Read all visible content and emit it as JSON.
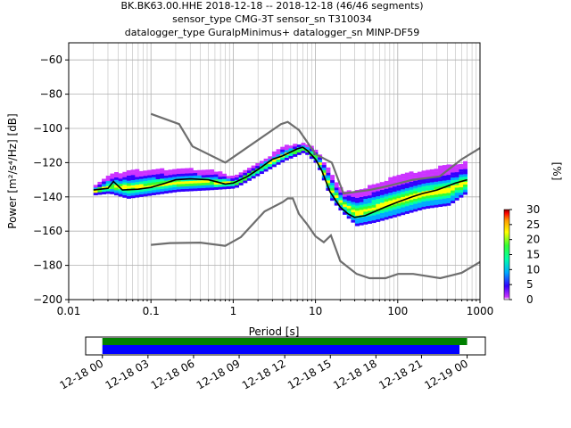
{
  "chart_data": [
    {
      "type": "heatmap",
      "title_lines": [
        "BK.BK63.00.HHE   2018-12-18 -- 2018-12-18  (46/46 segments)",
        "sensor_type CMG-3T sensor_sn T310034",
        "datalogger_type GuralpMinimus+ datalogger_sn MINP-DF59"
      ],
      "xlabel": "Period [s]",
      "ylabel": "Power [m²/s⁴/Hz] [dB]",
      "x_scale": "log",
      "xlim": [
        0.01,
        1000
      ],
      "ylim": [
        -200,
        -50
      ],
      "x_ticks": [
        0.01,
        0.1,
        1,
        10,
        100,
        1000
      ],
      "x_tick_labels": [
        "0.01",
        "0.1",
        "1",
        "10",
        "100",
        "1000"
      ],
      "y_ticks": [
        -200,
        -180,
        -160,
        -140,
        -120,
        -100,
        -80,
        -60
      ],
      "y_tick_labels": [
        "−200",
        "−180",
        "−160",
        "−140",
        "−120",
        "−100",
        "−80",
        "−60"
      ],
      "grid": true,
      "colorbar": {
        "label": "[%]",
        "range": [
          0,
          30
        ],
        "ticks": [
          "0",
          "5",
          "10",
          "15",
          "20",
          "25",
          "30"
        ],
        "colormap": [
          "#ffffff",
          "#cc33ff",
          "#3300ff",
          "#00aaff",
          "#00ffaa",
          "#33ff33",
          "#ffff00",
          "#ff9900",
          "#ff0000",
          "#880000"
        ]
      },
      "series": [
        {
          "name": "",
          "color": "#6e6e6e",
          "points": [
            [
              0.1,
              -91.5
            ],
            [
              0.22,
              -97.5
            ],
            [
              0.32,
              -110.5
            ],
            [
              0.8,
              -120
            ],
            [
              3.8,
              -97.5
            ],
            [
              4.6,
              -96.2
            ],
            [
              6.3,
              -101
            ],
            [
              10,
              -115
            ],
            [
              15.8,
              -120
            ],
            [
              21.9,
              -138
            ],
            [
              31.6,
              -137
            ],
            [
              45.4,
              -136
            ],
            [
              70.8,
              -134
            ],
            [
              153,
              -130
            ],
            [
              324,
              -128
            ],
            [
              600,
              -118
            ],
            [
              1000,
              -111.5
            ]
          ]
        },
        {
          "name": "",
          "color": "#6e6e6e",
          "points": [
            [
              0.1,
              -168
            ],
            [
              0.17,
              -167
            ],
            [
              0.4,
              -166.7
            ],
            [
              0.8,
              -168.6
            ],
            [
              1.24,
              -163.5
            ],
            [
              2.4,
              -148.5
            ],
            [
              4,
              -143
            ],
            [
              4.6,
              -140.9
            ],
            [
              5.3,
              -140.9
            ],
            [
              6.3,
              -150
            ],
            [
              7.9,
              -156
            ],
            [
              10,
              -163
            ],
            [
              12.6,
              -166.5
            ],
            [
              15.4,
              -162.5
            ],
            [
              20,
              -177.5
            ],
            [
              31.6,
              -185
            ],
            [
              45.4,
              -187.5
            ],
            [
              70.8,
              -187.5
            ],
            [
              101,
              -185
            ],
            [
              154,
              -185
            ],
            [
              328,
              -187.5
            ],
            [
              600,
              -184.4
            ],
            [
              1000,
              -178
            ]
          ]
        },
        {
          "name": "",
          "color": "#000000",
          "points": [
            [
              0.02,
              -136
            ],
            [
              0.03,
              -135
            ],
            [
              0.035,
              -131
            ],
            [
              0.045,
              -136
            ],
            [
              0.07,
              -135.5
            ],
            [
              0.1,
              -134.5
            ],
            [
              0.15,
              -132
            ],
            [
              0.2,
              -130
            ],
            [
              0.3,
              -129.5
            ],
            [
              0.5,
              -130
            ],
            [
              0.8,
              -132.5
            ],
            [
              1,
              -132
            ],
            [
              1.5,
              -128
            ],
            [
              2,
              -124
            ],
            [
              3,
              -118
            ],
            [
              4,
              -116
            ],
            [
              6,
              -112
            ],
            [
              7,
              -111
            ],
            [
              8,
              -113
            ],
            [
              10,
              -118
            ],
            [
              12,
              -125
            ],
            [
              15,
              -137
            ],
            [
              20,
              -146
            ],
            [
              25,
              -150
            ],
            [
              30,
              -152
            ],
            [
              40,
              -151
            ],
            [
              50,
              -149
            ],
            [
              70,
              -146
            ],
            [
              100,
              -143
            ],
            [
              150,
              -140
            ],
            [
              200,
              -138
            ],
            [
              300,
              -136
            ],
            [
              500,
              -132
            ],
            [
              700,
              -130
            ]
          ]
        }
      ],
      "density_band": [
        {
          "period": 0.02,
          "ymin": -139,
          "ymax": -134
        },
        {
          "period": 0.03,
          "ymin": -138,
          "ymax": -128
        },
        {
          "period": 0.05,
          "ymin": -141,
          "ymax": -125
        },
        {
          "period": 0.1,
          "ymin": -139,
          "ymax": -125
        },
        {
          "period": 0.2,
          "ymin": -137,
          "ymax": -124
        },
        {
          "period": 0.5,
          "ymin": -136,
          "ymax": -125
        },
        {
          "period": 1,
          "ymin": -135,
          "ymax": -129
        },
        {
          "period": 2,
          "ymin": -127,
          "ymax": -120
        },
        {
          "period": 4,
          "ymin": -119,
          "ymax": -111
        },
        {
          "period": 7,
          "ymin": -114,
          "ymax": -109
        },
        {
          "period": 10,
          "ymin": -121,
          "ymax": -114
        },
        {
          "period": 15,
          "ymin": -142,
          "ymax": -128
        },
        {
          "period": 20,
          "ymin": -149,
          "ymax": -137
        },
        {
          "period": 30,
          "ymin": -157,
          "ymax": -137
        },
        {
          "period": 50,
          "ymin": -155,
          "ymax": -133
        },
        {
          "period": 100,
          "ymin": -151,
          "ymax": -128
        },
        {
          "period": 200,
          "ymin": -147,
          "ymax": -125
        },
        {
          "period": 400,
          "ymin": -145,
          "ymax": -122
        },
        {
          "period": 700,
          "ymin": -137,
          "ymax": -120
        }
      ]
    },
    {
      "type": "bar",
      "description": "data coverage timeline",
      "x_tick_labels": [
        "12-18 00",
        "12-18 03",
        "12-18 06",
        "12-18 09",
        "12-18 12",
        "12-18 15",
        "12-18 18",
        "12-18 21",
        "12-19 00"
      ],
      "x_range_hours": [
        -1.1,
        25.2
      ],
      "bars": [
        {
          "color": "#008000",
          "start_hour": 0.0,
          "end_hour": 24.0
        },
        {
          "color": "#0000ff",
          "start_hour": 0.0,
          "end_hour": 23.5
        }
      ]
    }
  ]
}
